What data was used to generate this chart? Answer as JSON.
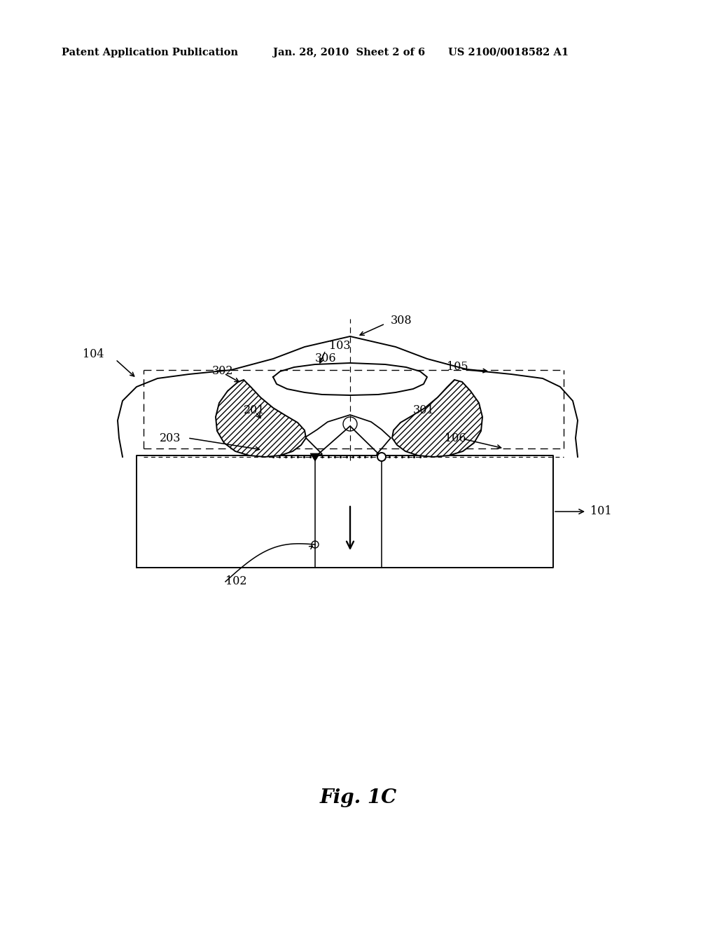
{
  "bg_color": "#ffffff",
  "line_color": "#000000",
  "header_text1": "Patent Application Publication",
  "header_text2": "Jan. 28, 2010  Sheet 2 of 6",
  "header_text3": "US 2100/0018582 A1",
  "fig_label": "Fig. 1C"
}
